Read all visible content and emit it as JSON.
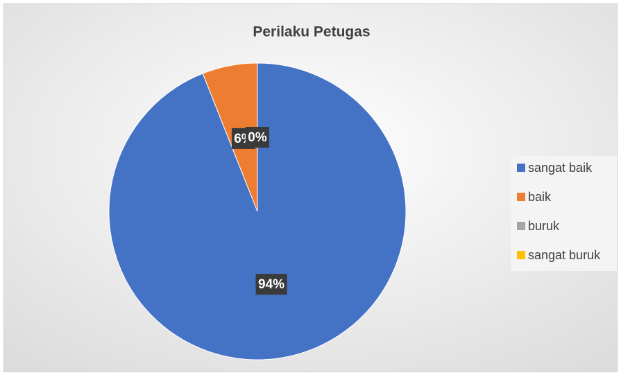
{
  "chart_data": {
    "type": "pie",
    "title": "Perilaku Petugas",
    "categories": [
      "sangat baik",
      "baik",
      "buruk",
      "sangat buruk"
    ],
    "values": [
      94,
      6,
      0,
      0
    ],
    "value_labels": [
      "94%",
      "6%",
      "0%",
      "0%"
    ],
    "colors": [
      "#4472c4",
      "#ed7d31",
      "#a5a5a5",
      "#ffc000"
    ],
    "legend": "right"
  }
}
